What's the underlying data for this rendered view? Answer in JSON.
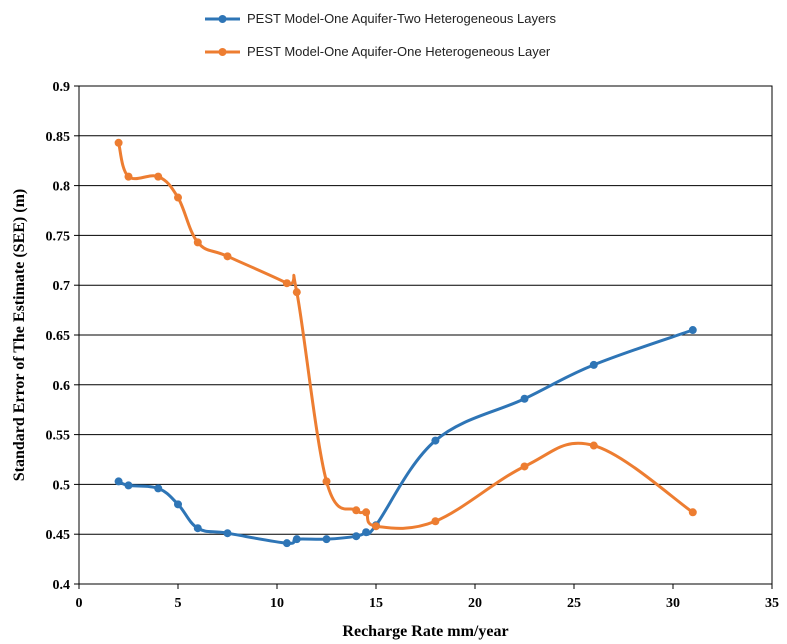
{
  "chart_data": {
    "type": "line",
    "title": "",
    "xlabel": "Recharge Rate mm/year",
    "ylabel": "Standard Error of The Estimate (SEE) (m)",
    "xlim": [
      0,
      35
    ],
    "ylim": [
      0.4,
      0.9
    ],
    "x_ticks": [
      "0",
      "5",
      "10",
      "15",
      "20",
      "25",
      "30",
      "35"
    ],
    "y_ticks": [
      "0.4",
      "0.45",
      "0.5",
      "0.55",
      "0.6",
      "0.65",
      "0.7",
      "0.75",
      "0.8",
      "0.85",
      "0.9"
    ],
    "grid": "horizontal",
    "legend_position": "top",
    "series": [
      {
        "name": "PEST Model-One Aquifer-Two Heterogeneous Layers",
        "color": "#2E75B6",
        "x": [
          2,
          2.5,
          4,
          5,
          6,
          7.5,
          10.5,
          11,
          12.5,
          14,
          14.5,
          15,
          18,
          22.5,
          26,
          31
        ],
        "y": [
          0.503,
          0.499,
          0.496,
          0.48,
          0.456,
          0.451,
          0.441,
          0.445,
          0.445,
          0.448,
          0.452,
          0.459,
          0.544,
          0.586,
          0.62,
          0.655
        ]
      },
      {
        "name": "PEST Model-One Aquifer-One Heterogeneous Layer",
        "color": "#ED7D31",
        "x": [
          2,
          2.5,
          4,
          5,
          6,
          7.5,
          10.5,
          11,
          12.5,
          14,
          14.5,
          15,
          18,
          22.5,
          26,
          31
        ],
        "y": [
          0.843,
          0.809,
          0.809,
          0.788,
          0.743,
          0.729,
          0.702,
          0.693,
          0.503,
          0.474,
          0.472,
          0.458,
          0.463,
          0.518,
          0.539,
          0.472
        ]
      }
    ]
  }
}
